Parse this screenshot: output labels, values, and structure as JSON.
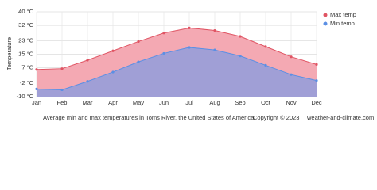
{
  "chart_data": {
    "type": "area",
    "y_label": "Temperature",
    "categories": [
      "Jan",
      "Feb",
      "Mar",
      "Apr",
      "May",
      "Jun",
      "Jul",
      "Aug",
      "Sep",
      "Oct",
      "Nov",
      "Dec"
    ],
    "series": [
      {
        "name": "Max temp",
        "color": "#e05463",
        "fill": "#f4a9b3",
        "values": [
          6,
          6.5,
          11.5,
          17,
          22.5,
          27.5,
          30.5,
          29,
          25.5,
          19.5,
          13.5,
          9
        ]
      },
      {
        "name": "Min temp",
        "color": "#5b8fe4",
        "fill": "#a09fd6",
        "values": [
          -5.5,
          -6,
          -1,
          4.5,
          10.5,
          15.5,
          19,
          17.5,
          14,
          8.5,
          3,
          -0.5
        ]
      }
    ],
    "ylim": [
      -10,
      40
    ],
    "yticks": [
      {
        "value": 40,
        "label": "40 °C"
      },
      {
        "value": 32,
        "label": "32 °C"
      },
      {
        "value": 23,
        "label": "23 °C"
      },
      {
        "value": 15,
        "label": "15 °C"
      },
      {
        "value": 7,
        "label": "7 °C"
      },
      {
        "value": -2,
        "label": "-2 °C"
      },
      {
        "value": -10,
        "label": "-10 °C"
      }
    ],
    "grid": true,
    "legend": "top-right",
    "caption": "Average min and max temperatures in Toms River, the United States of America",
    "copyright": "Copyright © 2023",
    "site": "weather-and-climate.com"
  }
}
